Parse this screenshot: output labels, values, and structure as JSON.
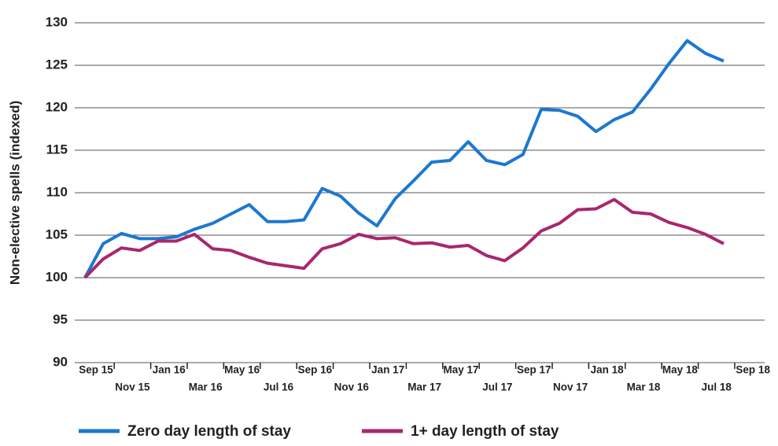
{
  "chart_data": {
    "type": "line",
    "y_label": "Non-elective spells (indexed)",
    "categories": [
      "Sep 15",
      null,
      "Nov 15",
      null,
      "Jan 16",
      null,
      "Mar 16",
      null,
      "May 16",
      null,
      "Jul 16",
      null,
      "Sep 16",
      null,
      "Nov 16",
      null,
      "Jan 17",
      null,
      "Mar 17",
      null,
      "May 17",
      null,
      "Jul 17",
      null,
      "Sep 17",
      null,
      "Nov 17",
      null,
      "Jan 18",
      null,
      "Mar 18",
      null,
      "May 18",
      null,
      "Jul 18",
      null,
      "Sep 18"
    ],
    "series": [
      {
        "name": "Zero day length of stay",
        "color": "#1b78d0",
        "values": [
          100,
          104,
          105.2,
          104.6,
          104.6,
          104.8,
          105.7,
          106.4,
          107.5,
          108.6,
          106.6,
          106.6,
          106.8,
          110.5,
          109.6,
          107.6,
          106.1,
          109.3,
          111.4,
          113.6,
          113.8,
          116,
          113.8,
          113.3,
          114.5,
          119.8,
          119.7,
          119,
          117.2,
          118.6,
          119.5,
          122.2,
          125.2,
          127.9,
          126.4,
          125.5,
          null
        ]
      },
      {
        "name": "1+ day length of stay",
        "color": "#a8276e",
        "values": [
          100,
          102.2,
          103.5,
          103.2,
          104.3,
          104.3,
          105.1,
          103.4,
          103.2,
          102.4,
          101.7,
          101.4,
          101.1,
          103.4,
          104,
          105.1,
          104.6,
          104.7,
          104,
          104.1,
          103.6,
          103.8,
          102.6,
          102,
          103.5,
          105.5,
          106.4,
          108,
          108.1,
          109.2,
          107.7,
          107.5,
          106.5,
          105.9,
          105.1,
          104,
          null
        ]
      }
    ],
    "ylim": [
      90,
      130
    ],
    "yticks": [
      90,
      95,
      100,
      105,
      110,
      115,
      120,
      125,
      130
    ],
    "grid": true,
    "legend": "bottom"
  }
}
